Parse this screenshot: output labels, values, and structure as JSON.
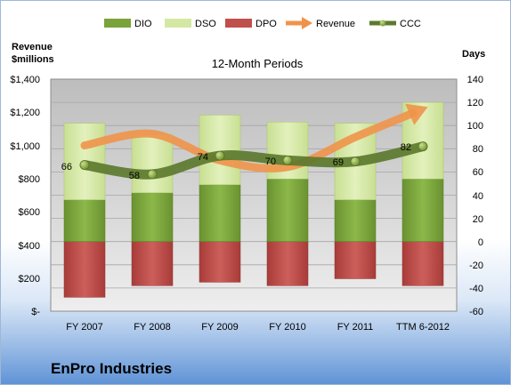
{
  "chart_data": {
    "type": "bar",
    "title": "12-Month Periods",
    "company": "EnPro Industries",
    "categories": [
      "FY 2007",
      "FY 2008",
      "FY 2009",
      "FY 2010",
      "FY 2011",
      "TTM 6-2012"
    ],
    "series": [
      {
        "name": "DIO",
        "kind": "stacked-bar",
        "axis": "right",
        "color": "#7aa33a",
        "values": [
          36,
          42,
          49,
          54,
          36,
          54
        ]
      },
      {
        "name": "DSO",
        "kind": "stacked-bar",
        "axis": "right",
        "color": "#d4e8a3",
        "values": [
          66,
          50,
          60,
          49,
          66,
          66
        ]
      },
      {
        "name": "DPO",
        "kind": "bar-below-zero",
        "axis": "right",
        "color": "#c0504d",
        "values": [
          -48,
          -38,
          -35,
          -38,
          -32,
          -38
        ]
      },
      {
        "name": "Revenue",
        "kind": "arrow",
        "axis": "left",
        "color": "#f0934a",
        "values": [
          1000,
          1070,
          910,
          870,
          1050,
          1220
        ]
      },
      {
        "name": "CCC",
        "kind": "line",
        "axis": "right",
        "color": "#5c7a2e",
        "values": [
          66,
          58,
          74,
          70,
          69,
          82
        ]
      }
    ],
    "y_left": {
      "label_line1": "Revenue",
      "label_line2": "$millions",
      "min": 0,
      "max": 1400,
      "step": 200,
      "tick_labels": [
        "$-",
        "$200",
        "$400",
        "$600",
        "$800",
        "$1,000",
        "$1,200",
        "$1,400"
      ]
    },
    "y_right": {
      "label": "Days",
      "min": -60,
      "max": 140,
      "step": 20,
      "tick_labels": [
        "-60",
        "-40",
        "-20",
        "0",
        "20",
        "40",
        "60",
        "80",
        "100",
        "120",
        "140"
      ]
    },
    "ccc_labels": [
      "66",
      "58",
      "74",
      "70",
      "69",
      "82"
    ],
    "legend": [
      "DIO",
      "DSO",
      "DPO",
      "Revenue",
      "CCC"
    ],
    "legend_position": "top",
    "grid": true
  }
}
